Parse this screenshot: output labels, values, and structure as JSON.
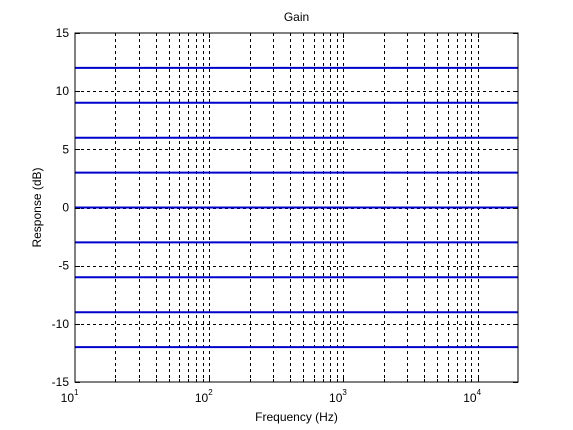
{
  "chart_data": {
    "type": "line",
    "title": "Gain",
    "xlabel": "Frequency (Hz)",
    "ylabel": "Response (dB)",
    "x_scale": "log",
    "xlim": [
      10,
      20000
    ],
    "ylim": [
      -15,
      15
    ],
    "grid": true,
    "x_tick_labels": [
      {
        "value": 10,
        "base": "10",
        "exp": "1"
      },
      {
        "value": 100,
        "base": "10",
        "exp": "2"
      },
      {
        "value": 1000,
        "base": "10",
        "exp": "3"
      },
      {
        "value": 10000,
        "base": "10",
        "exp": "4"
      }
    ],
    "y_ticks": [
      -15,
      -10,
      -5,
      0,
      5,
      10,
      15
    ],
    "y_tick_labels": [
      "-15",
      "-10",
      "-5",
      "0",
      "5",
      "10",
      "15"
    ],
    "series": [
      {
        "x": [
          10,
          20000
        ],
        "values": [
          12,
          12
        ]
      },
      {
        "x": [
          10,
          20000
        ],
        "values": [
          9,
          9
        ]
      },
      {
        "x": [
          10,
          20000
        ],
        "values": [
          6,
          6
        ]
      },
      {
        "x": [
          10,
          20000
        ],
        "values": [
          3,
          3
        ]
      },
      {
        "x": [
          10,
          20000
        ],
        "values": [
          0,
          0
        ]
      },
      {
        "x": [
          10,
          20000
        ],
        "values": [
          -3,
          -3
        ]
      },
      {
        "x": [
          10,
          20000
        ],
        "values": [
          -6,
          -6
        ]
      },
      {
        "x": [
          10,
          20000
        ],
        "values": [
          -9,
          -9
        ]
      },
      {
        "x": [
          10,
          20000
        ],
        "values": [
          -12,
          -12
        ]
      }
    ],
    "colors": {
      "series": "#0000cc",
      "grid": "#000000",
      "axes": "#000000"
    }
  }
}
